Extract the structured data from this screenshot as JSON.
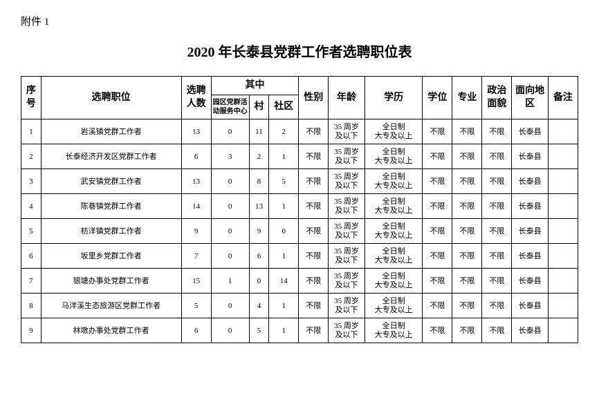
{
  "attachment_label": "附件 1",
  "title": "2020 年长泰县党群工作者选聘职位表",
  "headers": {
    "seq": "序号",
    "position": "选聘职位",
    "count": "选聘人数",
    "among": "其中",
    "sub1": "园区党群活动服务中心",
    "sub2": "村",
    "sub3": "社区",
    "gender": "性别",
    "age": "年龄",
    "education": "学历",
    "degree": "学位",
    "major": "专业",
    "political": "政治面貌",
    "area": "面向地区",
    "note": "备注"
  },
  "common": {
    "gender": "不限",
    "age_line1": "35 周岁",
    "age_line2": "及以下",
    "edu_line1": "全日制",
    "edu_line2": "大专及以上",
    "degree": "不限",
    "major": "不限",
    "political": "不限",
    "area": "长泰县"
  },
  "rows": [
    {
      "seq": "1",
      "position": "岩溪镇党群工作者",
      "count": "13",
      "s1": "0",
      "s2": "11",
      "s3": "2"
    },
    {
      "seq": "2",
      "position": "长泰经济开发区党群工作者",
      "count": "6",
      "s1": "3",
      "s2": "2",
      "s3": "1"
    },
    {
      "seq": "3",
      "position": "武安镇党群工作者",
      "count": "13",
      "s1": "0",
      "s2": "8",
      "s3": "5"
    },
    {
      "seq": "4",
      "position": "陈巷镇党群工作者",
      "count": "14",
      "s1": "0",
      "s2": "13",
      "s3": "1"
    },
    {
      "seq": "5",
      "position": "枋洋镇党群工作者",
      "count": "9",
      "s1": "0",
      "s2": "9",
      "s3": "0"
    },
    {
      "seq": "6",
      "position": "坂里乡党群工作者",
      "count": "7",
      "s1": "0",
      "s2": "6",
      "s3": "1"
    },
    {
      "seq": "7",
      "position": "银塘办事处党群工作者",
      "count": "15",
      "s1": "1",
      "s2": "0",
      "s3": "14"
    },
    {
      "seq": "8",
      "position": "马洋溪生态旅游区党群工作者",
      "count": "5",
      "s1": "0",
      "s2": "4",
      "s3": "1"
    },
    {
      "seq": "9",
      "position": "林墩办事处党群工作者",
      "count": "6",
      "s1": "0",
      "s2": "5",
      "s3": "1"
    }
  ]
}
